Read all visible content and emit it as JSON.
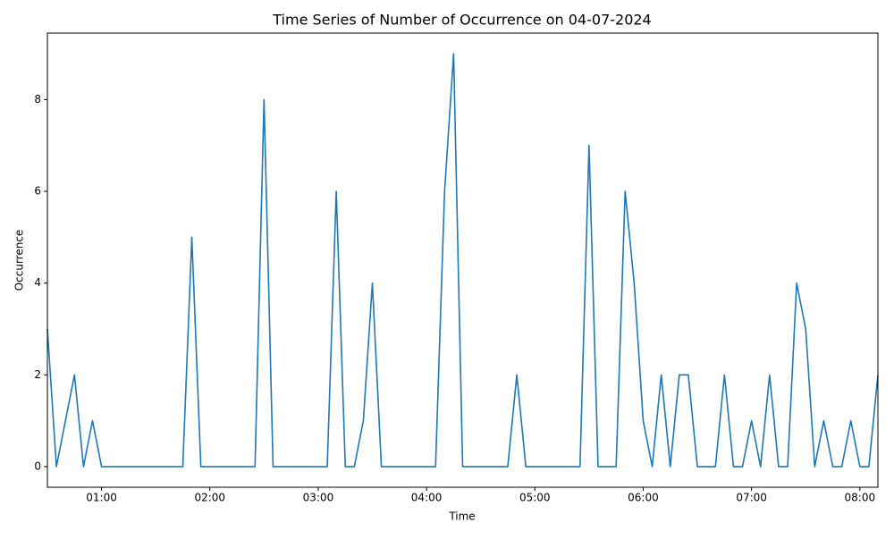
{
  "chart_data": {
    "type": "line",
    "title": "Time Series of Number of Occurrence on 04-07-2024",
    "x_label": "Time",
    "y_label": "Occurrence",
    "x": [
      "00:30",
      "00:35",
      "00:40",
      "00:45",
      "00:50",
      "00:55",
      "01:00",
      "01:05",
      "01:10",
      "01:15",
      "01:20",
      "01:25",
      "01:30",
      "01:35",
      "01:40",
      "01:45",
      "01:50",
      "01:55",
      "02:00",
      "02:05",
      "02:10",
      "02:15",
      "02:20",
      "02:25",
      "02:30",
      "02:35",
      "02:40",
      "02:45",
      "02:50",
      "02:55",
      "03:00",
      "03:05",
      "03:10",
      "03:15",
      "03:20",
      "03:25",
      "03:30",
      "03:35",
      "03:40",
      "03:45",
      "03:50",
      "03:55",
      "04:00",
      "04:05",
      "04:10",
      "04:15",
      "04:20",
      "04:25",
      "04:30",
      "04:35",
      "04:40",
      "04:45",
      "04:50",
      "04:55",
      "05:00",
      "05:05",
      "05:10",
      "05:15",
      "05:20",
      "05:25",
      "05:30",
      "05:35",
      "05:40",
      "05:45",
      "05:50",
      "05:55",
      "06:00",
      "06:05",
      "06:10",
      "06:15",
      "06:20",
      "06:25",
      "06:30",
      "06:35",
      "06:40",
      "06:45",
      "06:50",
      "06:55",
      "07:00",
      "07:05",
      "07:10",
      "07:15",
      "07:20",
      "07:25",
      "07:30",
      "07:35",
      "07:40",
      "07:45",
      "07:50",
      "07:55",
      "08:00",
      "08:05",
      "08:10"
    ],
    "series": [
      {
        "name": "Occurrence",
        "color": "#1f77b4",
        "values": [
          3,
          0,
          1,
          2,
          0,
          1,
          0,
          0,
          0,
          0,
          0,
          0,
          0,
          0,
          0,
          0,
          5,
          0,
          0,
          0,
          0,
          0,
          0,
          0,
          8,
          0,
          0,
          0,
          0,
          0,
          0,
          0,
          6,
          0,
          0,
          1,
          4,
          0,
          0,
          0,
          0,
          0,
          0,
          0,
          6,
          9,
          0,
          0,
          0,
          0,
          0,
          0,
          2,
          0,
          0,
          0,
          0,
          0,
          0,
          0,
          7,
          0,
          0,
          0,
          6,
          4,
          1,
          0,
          2,
          0,
          2,
          2,
          0,
          0,
          0,
          2,
          0,
          0,
          1,
          0,
          2,
          0,
          0,
          4,
          3,
          0,
          1,
          0,
          0,
          1,
          0,
          0,
          2
        ]
      }
    ],
    "xlim": [
      "00:30",
      "08:10"
    ],
    "xticks": [
      "01:00",
      "02:00",
      "03:00",
      "04:00",
      "05:00",
      "06:00",
      "07:00",
      "08:00"
    ],
    "ylim": [
      -0.45,
      9.45
    ],
    "yticks": [
      0,
      2,
      4,
      6,
      8
    ],
    "grid": false
  }
}
